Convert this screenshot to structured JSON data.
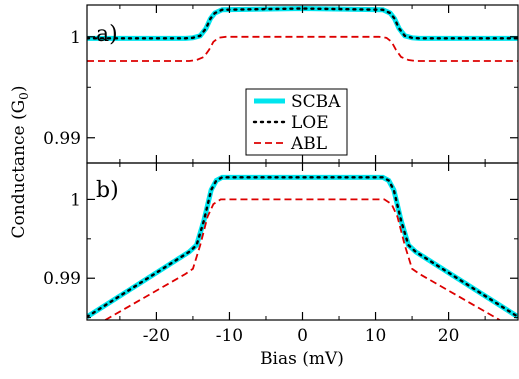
{
  "chart_data": {
    "type": "line",
    "xlabel": "Bias (mV)",
    "ylabel": "Conductance (G",
    "ylabel_sub": "0",
    "ylabel_close": ")",
    "xlim": [
      -29.5,
      29.5
    ],
    "x_ticks": [
      -20,
      -10,
      0,
      10,
      20
    ],
    "x_tick_labels": [
      "-20",
      "-10",
      "0",
      "10",
      "20"
    ],
    "legend": {
      "placement": "center-bottom of panel a",
      "entries": [
        {
          "name": "SCBA",
          "color": "#00e5ee",
          "style": "solid-thick"
        },
        {
          "name": "LOE",
          "color": "#000000",
          "style": "dotted"
        },
        {
          "name": "ABL",
          "color": "#dd0000",
          "style": "dashed"
        }
      ]
    },
    "panels": [
      {
        "label": "a)",
        "ylim": [
          0.9875,
          1.00315
        ],
        "y_ticks": [
          0.99,
          1.0
        ],
        "y_tick_labels": [
          "0.99",
          "1"
        ],
        "series": [
          {
            "name": "SCBA",
            "color": "#00e5ee",
            "x": [
              -29.5,
              -16,
              -15,
              -14,
              -13.2,
              -12.6,
              -12,
              -11,
              0,
              11,
              12,
              12.6,
              13.2,
              14,
              15,
              16,
              29.5
            ],
            "y": [
              0.99985,
              0.99985,
              0.9999,
              1.0001,
              1.00085,
              1.0018,
              1.00235,
              1.00268,
              1.0028,
              1.00268,
              1.00235,
              1.0018,
              1.00085,
              1.0001,
              0.9999,
              0.99985,
              0.99985
            ]
          },
          {
            "name": "LOE",
            "color": "#000000",
            "x": [
              -29.5,
              -16,
              -15,
              -14,
              -13.2,
              -12.6,
              -12,
              -11,
              0,
              11,
              12,
              12.6,
              13.2,
              14,
              15,
              16,
              29.5
            ],
            "y": [
              0.99985,
              0.99985,
              0.9999,
              1.0001,
              1.00085,
              1.0018,
              1.00235,
              1.00268,
              1.0028,
              1.00268,
              1.00235,
              1.0018,
              1.00085,
              1.0001,
              0.9999,
              0.99985,
              0.99985
            ]
          },
          {
            "name": "ABL",
            "color": "#dd0000",
            "x": [
              -29.5,
              -15.5,
              -14.5,
              -13.5,
              -12.8,
              -12.2,
              -11.5,
              -10.5,
              0,
              10.5,
              11.5,
              12.2,
              12.8,
              13.5,
              14.5,
              15.5,
              29.5
            ],
            "y": [
              0.9976,
              0.9976,
              0.9977,
              0.998,
              0.9987,
              0.9995,
              0.9999,
              1.0,
              1.0,
              1.0,
              0.9999,
              0.9995,
              0.9987,
              0.998,
              0.9977,
              0.9976,
              0.9976
            ]
          }
        ]
      },
      {
        "label": "b)",
        "ylim": [
          0.9847,
          1.00462
        ],
        "y_ticks": [
          0.99,
          1.0
        ],
        "y_tick_labels": [
          "0.99",
          "1"
        ],
        "series": [
          {
            "name": "SCBA",
            "color": "#00e5ee",
            "x": [
              -29.5,
              -15.5,
              -14.5,
              -13.5,
              -12.5,
              -11.8,
              -11,
              0,
              11,
              11.8,
              12.5,
              13.5,
              14.5,
              15.5,
              29.5
            ],
            "y": [
              0.9851,
              0.99335,
              0.9942,
              0.9973,
              1.0012,
              1.0024,
              1.0028,
              1.0028,
              1.0028,
              1.0024,
              1.0012,
              0.9973,
              0.9942,
              0.99335,
              0.9851
            ]
          },
          {
            "name": "LOE",
            "color": "#000000",
            "x": [
              -29.5,
              -15.5,
              -14.5,
              -13.5,
              -12.5,
              -11.8,
              -11,
              0,
              11,
              11.8,
              12.5,
              13.5,
              14.5,
              15.5,
              29.5
            ],
            "y": [
              0.9851,
              0.99335,
              0.9942,
              0.9973,
              1.0012,
              1.0024,
              1.0028,
              1.0028,
              1.0028,
              1.0024,
              1.0012,
              0.9973,
              0.9942,
              0.99335,
              0.9851
            ]
          },
          {
            "name": "ABL",
            "color": "#dd0000",
            "x": [
              -27,
              -16,
              -15,
              -14,
              -13,
              -12.2,
              -11.2,
              0,
              11.2,
              12.2,
              13,
              14,
              15,
              16,
              27
            ],
            "y": [
              0.9847,
              0.99055,
              0.9912,
              0.9942,
              0.9978,
              0.9994,
              1.0,
              1.0,
              1.0,
              0.9994,
              0.9978,
              0.9942,
              0.9912,
              0.99055,
              0.9847
            ]
          }
        ]
      }
    ]
  }
}
